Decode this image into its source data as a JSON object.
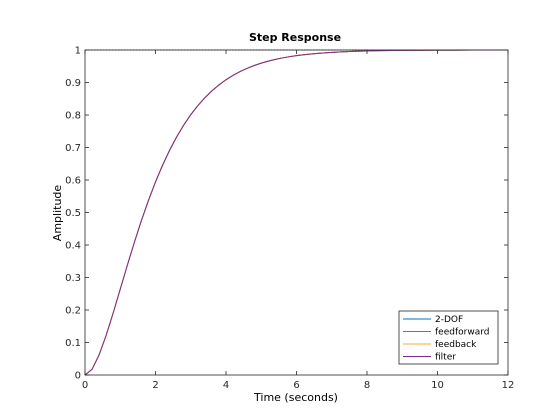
{
  "chart_data": {
    "type": "line",
    "title": "Step Response",
    "xlabel": "Time (seconds)",
    "ylabel": "Amplitude",
    "xlim": [
      0,
      12
    ],
    "ylim": [
      0,
      1
    ],
    "xticks": [
      0,
      2,
      4,
      6,
      8,
      10,
      12
    ],
    "yticks": [
      0,
      0.1,
      0.2,
      0.3,
      0.4,
      0.5,
      0.6,
      0.7,
      0.8,
      0.9,
      1
    ],
    "grid": false,
    "legend_position": "bottom-right",
    "reference_line": {
      "y": 1,
      "style": "dotted",
      "color": "#000000"
    },
    "x": [
      0,
      0.2,
      0.4,
      0.6,
      0.8,
      1.0,
      1.2,
      1.4,
      1.6,
      1.8,
      2.0,
      2.2,
      2.4,
      2.6,
      2.8,
      3.0,
      3.2,
      3.4,
      3.6,
      3.8,
      4.0,
      4.2,
      4.4,
      4.6,
      4.8,
      5.0,
      5.2,
      5.4,
      5.6,
      5.8,
      6.0,
      6.3,
      6.6,
      6.9,
      7.2,
      7.5,
      7.8,
      8.1,
      8.4,
      8.7,
      9.0,
      9.5,
      10.0,
      10.5,
      11.0,
      11.5,
      12.0
    ],
    "series": [
      {
        "name": "2-DOF",
        "color": "#0072bd",
        "values": [
          0,
          0.0175,
          0.0616,
          0.1219,
          0.1912,
          0.2642,
          0.3374,
          0.4082,
          0.4751,
          0.5372,
          0.594,
          0.6454,
          0.6916,
          0.7326,
          0.7689,
          0.8009,
          0.8288,
          0.8532,
          0.8743,
          0.8926,
          0.9084,
          0.922,
          0.9337,
          0.9437,
          0.9523,
          0.9596,
          0.9658,
          0.9711,
          0.9756,
          0.9794,
          0.9826,
          0.9866,
          0.9897,
          0.9921,
          0.9939,
          0.9953,
          0.9964,
          0.9973,
          0.9979,
          0.9984,
          0.9988,
          0.9992,
          0.9995,
          0.9997,
          0.9998,
          0.9999,
          0.9999
        ]
      },
      {
        "name": "feedforward",
        "color": "#d95319",
        "values": [
          0,
          0.0175,
          0.0616,
          0.1219,
          0.1912,
          0.2642,
          0.3374,
          0.4082,
          0.4751,
          0.5372,
          0.594,
          0.6454,
          0.6916,
          0.7326,
          0.7689,
          0.8009,
          0.8288,
          0.8532,
          0.8743,
          0.8926,
          0.9084,
          0.922,
          0.9337,
          0.9437,
          0.9523,
          0.9596,
          0.9658,
          0.9711,
          0.9756,
          0.9794,
          0.9826,
          0.9866,
          0.9897,
          0.9921,
          0.9939,
          0.9953,
          0.9964,
          0.9973,
          0.9979,
          0.9984,
          0.9988,
          0.9992,
          0.9995,
          0.9997,
          0.9998,
          0.9999,
          0.9999
        ]
      },
      {
        "name": "feedback",
        "color": "#edb120",
        "values": [
          0,
          0.0175,
          0.0616,
          0.1219,
          0.1912,
          0.2642,
          0.3374,
          0.4082,
          0.4751,
          0.5372,
          0.594,
          0.6454,
          0.6916,
          0.7326,
          0.7689,
          0.8009,
          0.8288,
          0.8532,
          0.8743,
          0.8926,
          0.9084,
          0.922,
          0.9337,
          0.9437,
          0.9523,
          0.9596,
          0.9658,
          0.9711,
          0.9756,
          0.9794,
          0.9826,
          0.9866,
          0.9897,
          0.9921,
          0.9939,
          0.9953,
          0.9964,
          0.9973,
          0.9979,
          0.9984,
          0.9988,
          0.9992,
          0.9995,
          0.9997,
          0.9998,
          0.9999,
          0.9999
        ]
      },
      {
        "name": "filter",
        "color": "#7e2f8e",
        "values": [
          0,
          0.0175,
          0.0616,
          0.1219,
          0.1912,
          0.2642,
          0.3374,
          0.4082,
          0.4751,
          0.5372,
          0.594,
          0.6454,
          0.6916,
          0.7326,
          0.7689,
          0.8009,
          0.8288,
          0.8532,
          0.8743,
          0.8926,
          0.9084,
          0.922,
          0.9337,
          0.9437,
          0.9523,
          0.9596,
          0.9658,
          0.9711,
          0.9756,
          0.9794,
          0.9826,
          0.9866,
          0.9897,
          0.9921,
          0.9939,
          0.9953,
          0.9964,
          0.9973,
          0.9979,
          0.9984,
          0.9988,
          0.9992,
          0.9995,
          0.9997,
          0.9998,
          0.9999,
          0.9999
        ]
      }
    ]
  }
}
